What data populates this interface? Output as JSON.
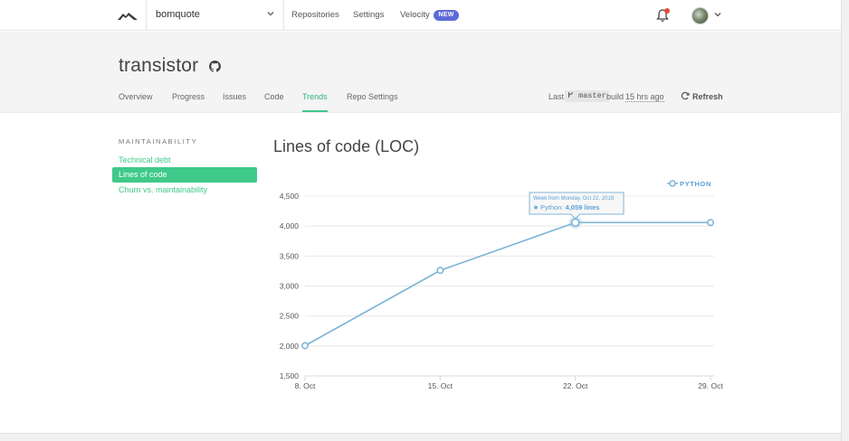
{
  "topbar": {
    "org_name": "bomquote",
    "nav": {
      "repositories": "Repositories",
      "settings": "Settings",
      "velocity": "Velocity",
      "new_badge": "NEW"
    }
  },
  "repo": {
    "name": "transistor",
    "tabs": [
      "Overview",
      "Progress",
      "Issues",
      "Code",
      "Trends",
      "Repo Settings"
    ],
    "active_tab": "Trends",
    "last_label": "Last",
    "branch": "master",
    "build_prefix": "build",
    "build_age": "15 hrs ago",
    "refresh_label": "Refresh"
  },
  "sidebar": {
    "heading": "MAINTAINABILITY",
    "items": [
      "Technical debt",
      "Lines of code",
      "Churn vs. maintainability"
    ],
    "active_item": "Lines of code"
  },
  "main": {
    "title": "Lines of code (LOC)"
  },
  "colors": {
    "accent": "#3fc98a",
    "series": "#7ab3d6",
    "badge": "#5b6ad8"
  },
  "chart_data": {
    "type": "line",
    "x": [
      "8. Oct",
      "15. Oct",
      "22. Oct",
      "29. Oct"
    ],
    "series": [
      {
        "name": "PYTHON",
        "values": [
          2005,
          3260,
          4059,
          4059
        ]
      }
    ],
    "ylim": [
      1500,
      4500
    ],
    "yticks": [
      "1,500",
      "2,000",
      "2,500",
      "3,000",
      "3,500",
      "4,000",
      "4,500"
    ],
    "grid": true,
    "legend": "top-right",
    "tooltip": {
      "title": "Week from Monday, Oct 22, 2018",
      "label": "Python:",
      "value": "4,059 lines",
      "index": 2
    }
  }
}
